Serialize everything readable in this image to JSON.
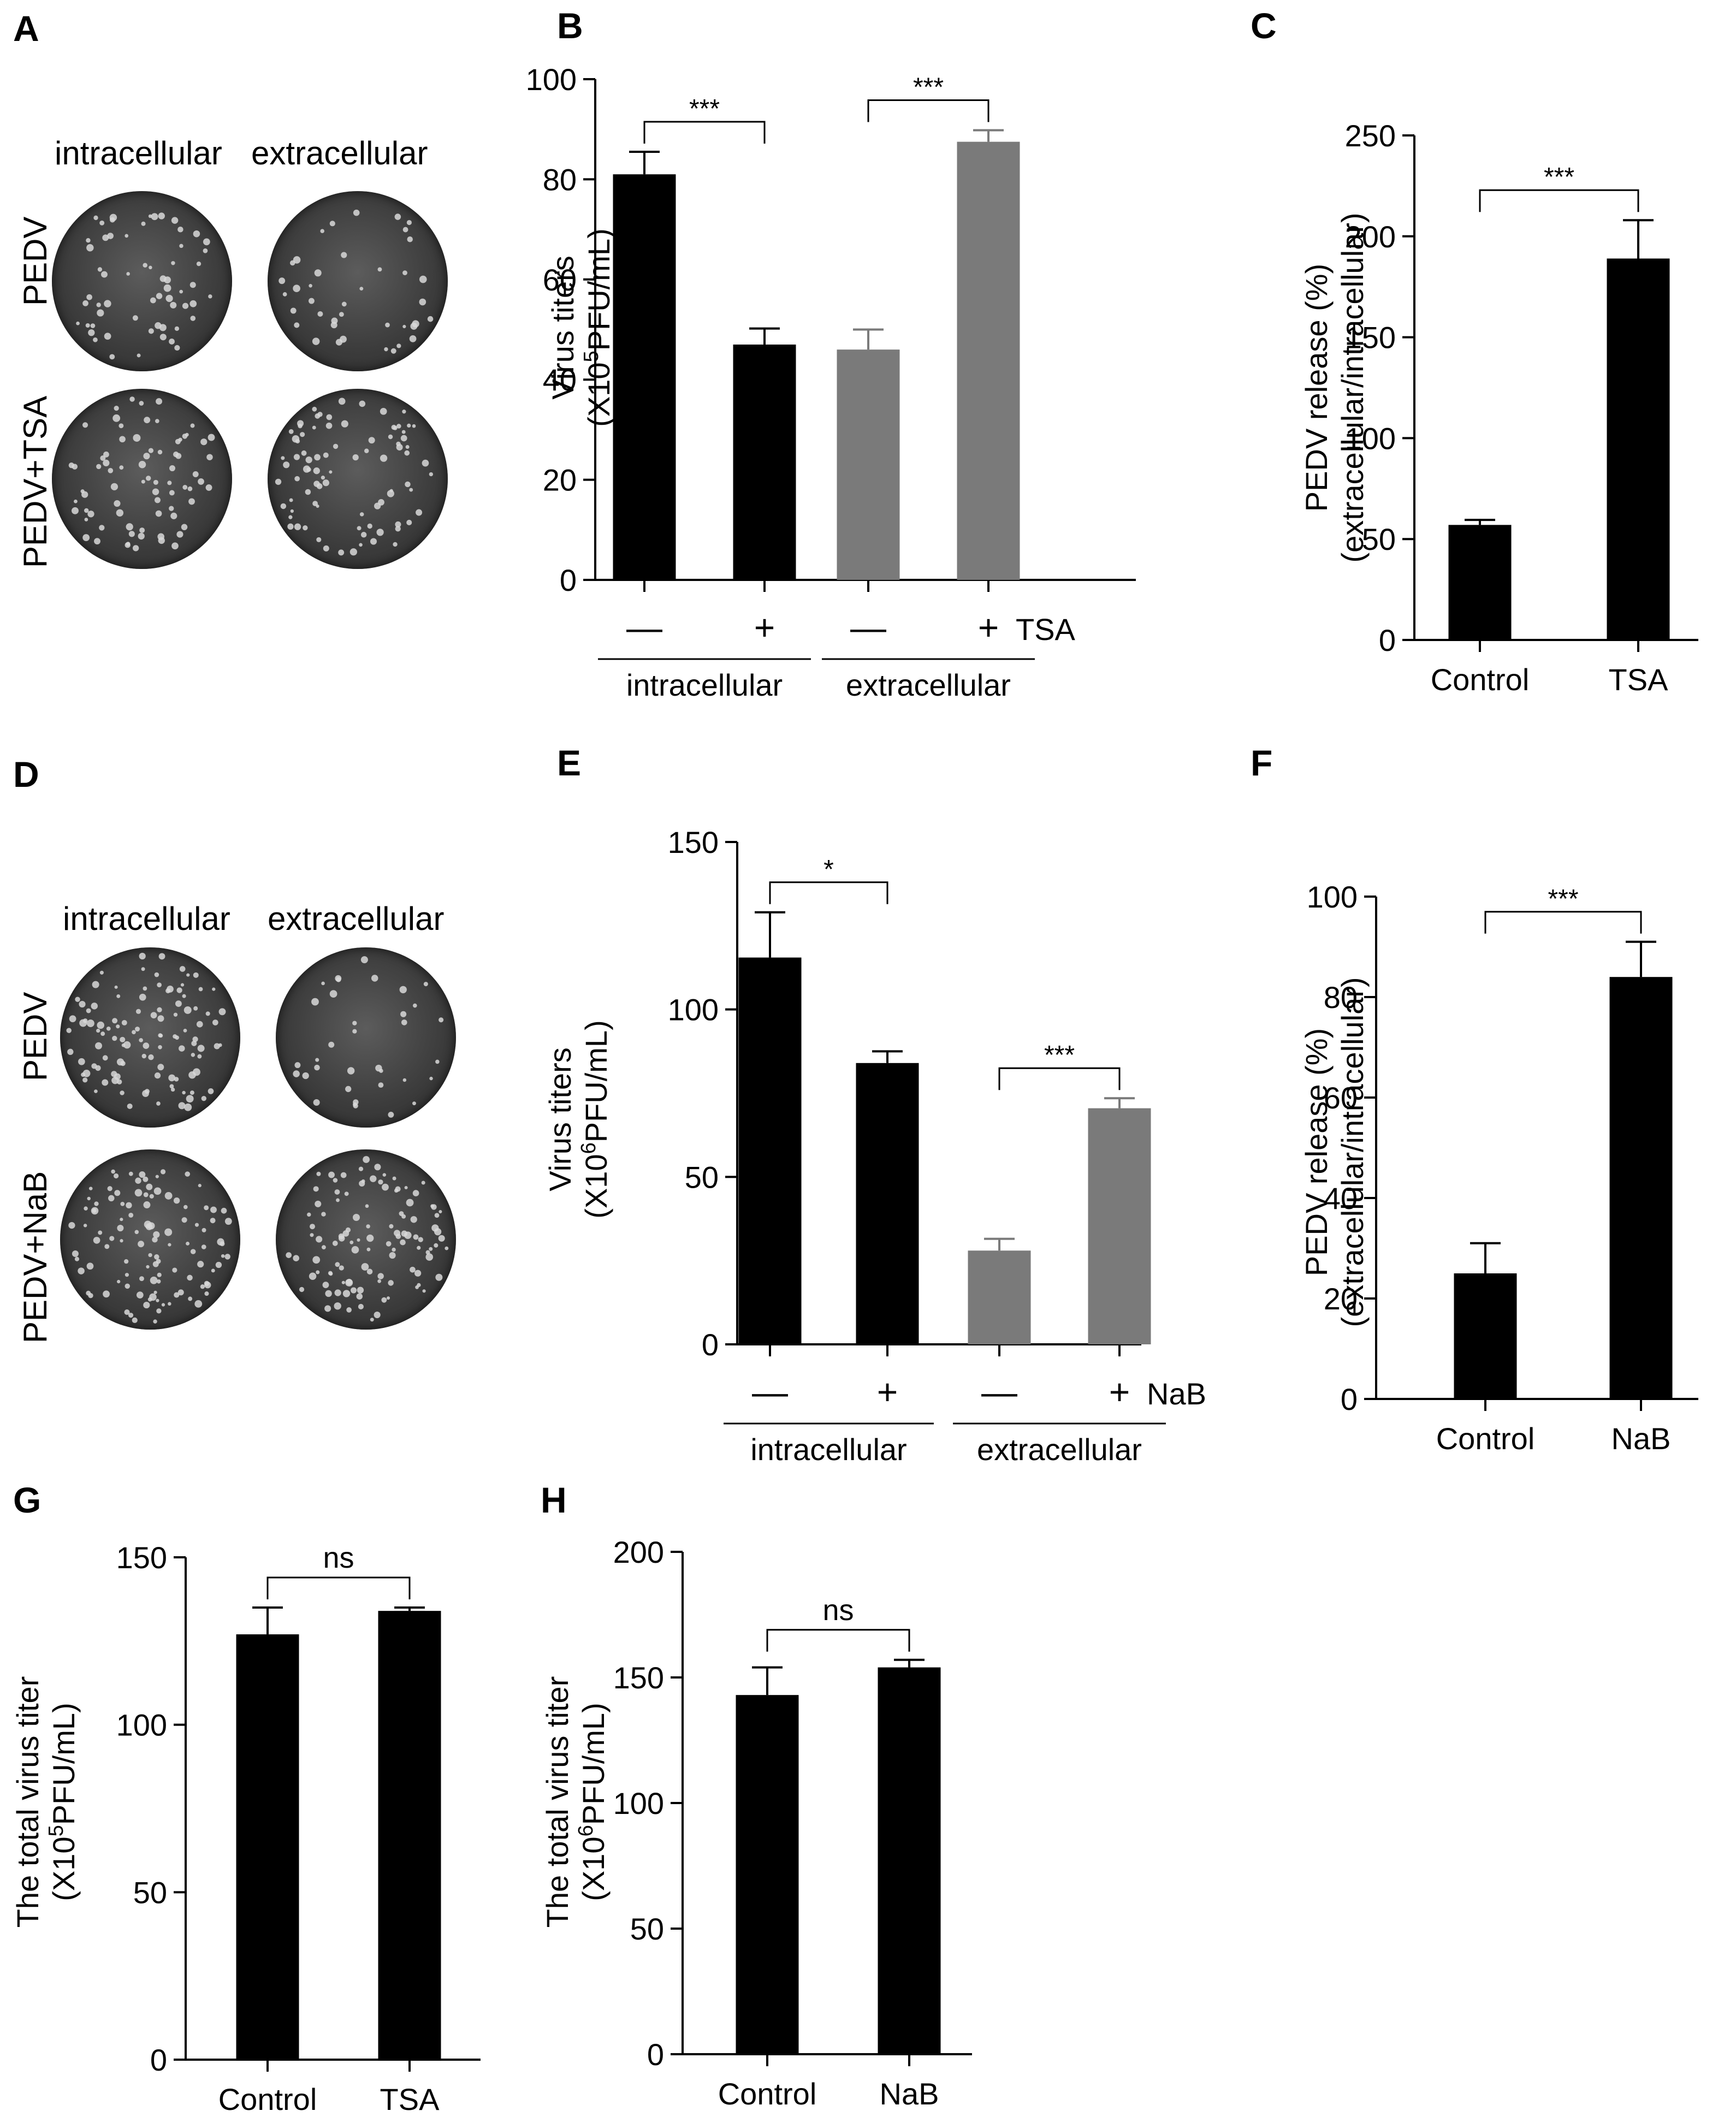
{
  "panels": {
    "A": {
      "label": "A",
      "col_titles": [
        "intracellular",
        "extracellular"
      ],
      "row_titles": [
        "PEDV",
        "PEDV+TSA"
      ]
    },
    "D": {
      "label": "D",
      "col_titles": [
        "intracellular",
        "extracellular"
      ],
      "row_titles": [
        "PEDV",
        "PEDV+NaB"
      ]
    }
  },
  "chart_data": [
    {
      "id": "B",
      "label": "B",
      "type": "bar",
      "ylabel_line1": "Virus titers",
      "ylabel_line2": "(X10",
      "ylabel_sup": "5",
      "ylabel_tail": "PFU/mL)",
      "ylim": [
        0,
        100
      ],
      "yticks": [
        "0",
        "20",
        "40",
        "60",
        "80",
        "100"
      ],
      "ytick_values": [
        0,
        20,
        40,
        60,
        80,
        100
      ],
      "categories": [
        "—",
        "+",
        "—",
        "+"
      ],
      "treatment_label": "TSA",
      "groups": [
        "intracellular",
        "extracellular"
      ],
      "values": [
        81,
        47,
        46,
        87.5
      ],
      "errors": [
        4.5,
        3.2,
        4,
        2.3
      ],
      "colors": [
        "#000000",
        "#000000",
        "#7a7a7a",
        "#7a7a7a"
      ],
      "significance": [
        {
          "from": 0,
          "to": 1,
          "label": "***"
        },
        {
          "from": 2,
          "to": 3,
          "label": "***"
        }
      ]
    },
    {
      "id": "C",
      "label": "C",
      "type": "bar",
      "ylabel_line1": "PEDV release (%)",
      "ylabel_line2": "(extracellular/intracellular)",
      "ylim": [
        0,
        250
      ],
      "yticks": [
        "0",
        "50",
        "100",
        "150",
        "200",
        "250"
      ],
      "ytick_values": [
        0,
        50,
        100,
        150,
        200,
        250
      ],
      "categories": [
        "Control",
        "TSA"
      ],
      "values": [
        57,
        189
      ],
      "errors": [
        2.5,
        19
      ],
      "colors": [
        "#000000",
        "#000000"
      ],
      "significance": [
        {
          "from": 0,
          "to": 1,
          "label": "***"
        }
      ]
    },
    {
      "id": "E",
      "label": "E",
      "type": "bar",
      "ylabel_line1": "Virus titers",
      "ylabel_line2": "(X10",
      "ylabel_sup": "6",
      "ylabel_tail": "PFU/mL)",
      "ylim": [
        0,
        150
      ],
      "yticks": [
        "0",
        "50",
        "100",
        "150"
      ],
      "ytick_values": [
        0,
        50,
        100,
        150
      ],
      "categories": [
        "—",
        "+",
        "—",
        "+"
      ],
      "treatment_label": "NaB",
      "groups": [
        "intracellular",
        "extracellular"
      ],
      "values": [
        115.5,
        84,
        28,
        70.5
      ],
      "errors": [
        13.5,
        3.5,
        3.5,
        3
      ],
      "colors": [
        "#000000",
        "#000000",
        "#7a7a7a",
        "#7a7a7a"
      ],
      "significance": [
        {
          "from": 0,
          "to": 1,
          "label": "*"
        },
        {
          "from": 2,
          "to": 3,
          "label": "***"
        }
      ]
    },
    {
      "id": "F",
      "label": "F",
      "type": "bar",
      "ylabel_line1": "PEDV release (%)",
      "ylabel_line2": "(extracellular/intracellular)",
      "ylim": [
        0,
        100
      ],
      "yticks": [
        "0",
        "20",
        "40",
        "60",
        "80",
        "100"
      ],
      "ytick_values": [
        0,
        20,
        40,
        60,
        80,
        100
      ],
      "categories": [
        "Control",
        "NaB"
      ],
      "values": [
        25,
        84
      ],
      "errors": [
        6,
        7
      ],
      "colors": [
        "#000000",
        "#000000"
      ],
      "significance": [
        {
          "from": 0,
          "to": 1,
          "label": "***"
        }
      ]
    },
    {
      "id": "G",
      "label": "G",
      "type": "bar",
      "ylabel_line1": "The total virus titer",
      "ylabel_line2": "(X10",
      "ylabel_sup": "5",
      "ylabel_tail": "PFU/mL)",
      "ylim": [
        0,
        150
      ],
      "yticks": [
        "0",
        "50",
        "100",
        "150"
      ],
      "ytick_values": [
        0,
        50,
        100,
        150
      ],
      "categories": [
        "Control",
        "TSA"
      ],
      "values": [
        127,
        134
      ],
      "errors": [
        8,
        1
      ],
      "colors": [
        "#000000",
        "#000000"
      ],
      "significance": [
        {
          "from": 0,
          "to": 1,
          "label": "ns"
        }
      ]
    },
    {
      "id": "H",
      "label": "H",
      "type": "bar",
      "ylabel_line1": "The total virus titer",
      "ylabel_line2": "(X10",
      "ylabel_sup": "6",
      "ylabel_tail": "PFU/mL)",
      "ylim": [
        0,
        200
      ],
      "yticks": [
        "0",
        "50",
        "100",
        "150",
        "200"
      ],
      "ytick_values": [
        0,
        50,
        100,
        150,
        200
      ],
      "categories": [
        "Control",
        "NaB"
      ],
      "values": [
        143,
        154
      ],
      "errors": [
        11,
        3
      ],
      "colors": [
        "#000000",
        "#000000"
      ],
      "significance": [
        {
          "from": 0,
          "to": 1,
          "label": "ns"
        }
      ]
    }
  ]
}
